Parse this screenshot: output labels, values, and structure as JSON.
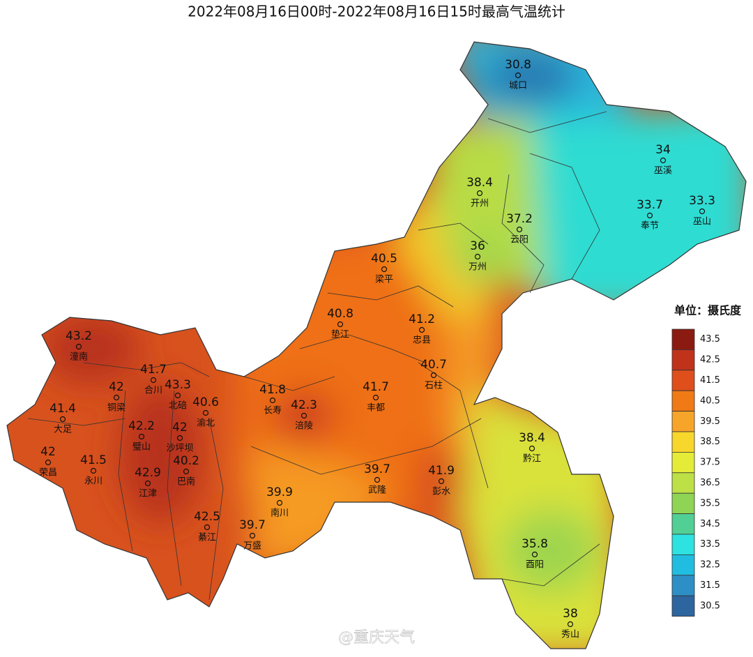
{
  "title": "2022年08月16日00时-2022年08月16日15时最高气温统计",
  "stations": [
    {
      "name": "城口",
      "value": 30.8
    },
    {
      "name": "巫溪",
      "value": 34
    },
    {
      "name": "巫山",
      "value": 33.3
    },
    {
      "name": "奉节",
      "value": 33.7
    },
    {
      "name": "开州",
      "value": 38.4
    },
    {
      "name": "云阳",
      "value": 37.2
    },
    {
      "name": "万州",
      "value": 36
    },
    {
      "name": "梁平",
      "value": 40.5
    },
    {
      "name": "垫江",
      "value": 40.8
    },
    {
      "name": "忠县",
      "value": 41.2
    },
    {
      "name": "石柱",
      "value": 40.7
    },
    {
      "name": "潼南",
      "value": 43.2
    },
    {
      "name": "合川",
      "value": 41.7
    },
    {
      "name": "北碚",
      "value": 43.3
    },
    {
      "name": "铜梁",
      "value": 42
    },
    {
      "name": "渝北",
      "value": 40.6
    },
    {
      "name": "大足",
      "value": 41.4
    },
    {
      "name": "长寿",
      "value": 41.8
    },
    {
      "name": "涪陵",
      "value": 42.3
    },
    {
      "name": "丰都",
      "value": 41.7
    },
    {
      "name": "璧山",
      "value": 42.2
    },
    {
      "name": "沙坪坝",
      "value": 42
    },
    {
      "name": "荣昌",
      "value": 42
    },
    {
      "name": "永川",
      "value": 41.5
    },
    {
      "name": "巴南",
      "value": 40.2
    },
    {
      "name": "江津",
      "value": 42.9
    },
    {
      "name": "武隆",
      "value": 39.7
    },
    {
      "name": "彭水",
      "value": 41.9
    },
    {
      "name": "南川",
      "value": 39.9
    },
    {
      "name": "黔江",
      "value": 38.4
    },
    {
      "name": "綦江",
      "value": 42.5
    },
    {
      "name": "万盛",
      "value": 39.7
    },
    {
      "name": "酉阳",
      "value": 35.8
    },
    {
      "name": "秀山",
      "value": 38
    }
  ],
  "legend": {
    "title": "单位：摄氏度",
    "ticks": [
      {
        "value": 43.5,
        "color": "#8b1a10"
      },
      {
        "value": 42.5,
        "color": "#c0321a"
      },
      {
        "value": 41.5,
        "color": "#de4f1c"
      },
      {
        "value": 40.5,
        "color": "#f07a16"
      },
      {
        "value": 39.5,
        "color": "#f7a52a"
      },
      {
        "value": 38.5,
        "color": "#f7d72c"
      },
      {
        "value": 37.5,
        "color": "#e4ec38"
      },
      {
        "value": 36.5,
        "color": "#bde046"
      },
      {
        "value": 35.5,
        "color": "#8fd454"
      },
      {
        "value": 34.5,
        "color": "#52cf94"
      },
      {
        "value": 33.5,
        "color": "#2de2e0"
      },
      {
        "value": 32.5,
        "color": "#20bde0"
      },
      {
        "value": 31.5,
        "color": "#2d8fc6"
      },
      {
        "value": 30.5,
        "color": "#2d659e"
      }
    ]
  },
  "watermark": "@重庆天气"
}
